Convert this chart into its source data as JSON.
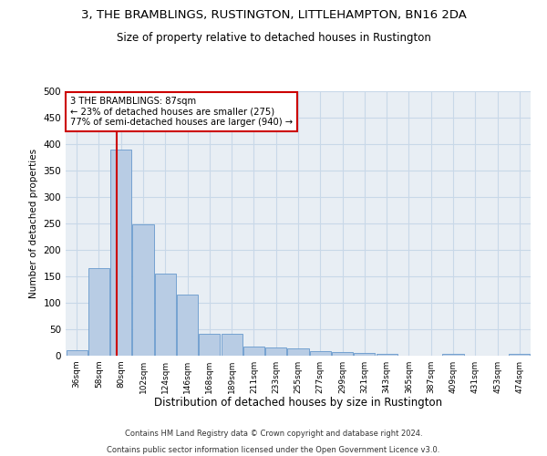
{
  "title": "3, THE BRAMBLINGS, RUSTINGTON, LITTLEHAMPTON, BN16 2DA",
  "subtitle": "Size of property relative to detached houses in Rustington",
  "xlabel": "Distribution of detached houses by size in Rustington",
  "ylabel": "Number of detached properties",
  "categories": [
    "36sqm",
    "58sqm",
    "80sqm",
    "102sqm",
    "124sqm",
    "146sqm",
    "168sqm",
    "189sqm",
    "211sqm",
    "233sqm",
    "255sqm",
    "277sqm",
    "299sqm",
    "321sqm",
    "343sqm",
    "365sqm",
    "387sqm",
    "409sqm",
    "431sqm",
    "453sqm",
    "474sqm"
  ],
  "values": [
    10,
    165,
    390,
    248,
    155,
    115,
    42,
    42,
    18,
    15,
    13,
    8,
    7,
    5,
    3,
    0,
    0,
    3,
    0,
    0,
    4
  ],
  "bar_color": "#b8cce4",
  "bar_edge_color": "#6699cc",
  "red_line_x": 1.82,
  "annotation_line1": "3 THE BRAMBLINGS: 87sqm",
  "annotation_line2": "← 23% of detached houses are smaller (275)",
  "annotation_line3": "77% of semi-detached houses are larger (940) →",
  "annotation_box_color": "#ffffff",
  "annotation_box_edgecolor": "#cc0000",
  "ylim": [
    0,
    500
  ],
  "yticks": [
    0,
    50,
    100,
    150,
    200,
    250,
    300,
    350,
    400,
    450,
    500
  ],
  "grid_color": "#c8d8e8",
  "footer_line1": "Contains HM Land Registry data © Crown copyright and database right 2024.",
  "footer_line2": "Contains public sector information licensed under the Open Government Licence v3.0.",
  "bg_color": "#e8eef4"
}
